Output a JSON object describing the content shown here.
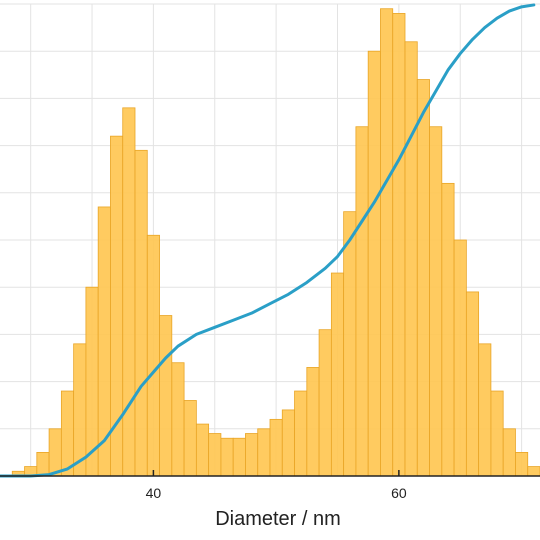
{
  "chart_data": {
    "type": "bar",
    "xlabel": "Diameter / nm",
    "x_ticks": [
      40,
      60
    ],
    "xlim": [
      27.5,
      71.5
    ],
    "ylim": [
      0,
      1.0
    ],
    "grid": true,
    "bar_color": "#ffc54f",
    "bar_edge_color": "#e9a526",
    "line_color": "#2a9fc7",
    "axis_color": "#222222",
    "histogram": {
      "bin_start": 28.5,
      "bin_width": 1.0,
      "counts": [
        0.01,
        0.02,
        0.05,
        0.1,
        0.18,
        0.28,
        0.4,
        0.57,
        0.72,
        0.78,
        0.69,
        0.51,
        0.34,
        0.24,
        0.16,
        0.11,
        0.09,
        0.08,
        0.08,
        0.09,
        0.1,
        0.12,
        0.14,
        0.18,
        0.23,
        0.31,
        0.43,
        0.56,
        0.74,
        0.9,
        0.99,
        0.98,
        0.92,
        0.84,
        0.74,
        0.62,
        0.5,
        0.39,
        0.28,
        0.18,
        0.1,
        0.05,
        0.02
      ]
    },
    "series": [
      {
        "type": "line",
        "x": [
          27.5,
          30,
          31.5,
          33,
          34.5,
          36,
          37.5,
          39,
          40,
          41,
          42,
          43.5,
          45,
          46.5,
          48,
          49.5,
          51,
          52.5,
          54,
          55,
          56,
          57,
          58,
          59,
          60,
          61,
          62,
          63,
          64,
          65,
          66,
          67,
          68,
          69,
          70,
          71
        ],
        "values": [
          0.0,
          0.0,
          0.003,
          0.015,
          0.04,
          0.075,
          0.13,
          0.19,
          0.22,
          0.25,
          0.275,
          0.3,
          0.315,
          0.33,
          0.345,
          0.365,
          0.385,
          0.41,
          0.44,
          0.465,
          0.5,
          0.54,
          0.58,
          0.625,
          0.67,
          0.72,
          0.77,
          0.815,
          0.86,
          0.895,
          0.925,
          0.95,
          0.97,
          0.985,
          0.994,
          0.998
        ]
      }
    ]
  }
}
